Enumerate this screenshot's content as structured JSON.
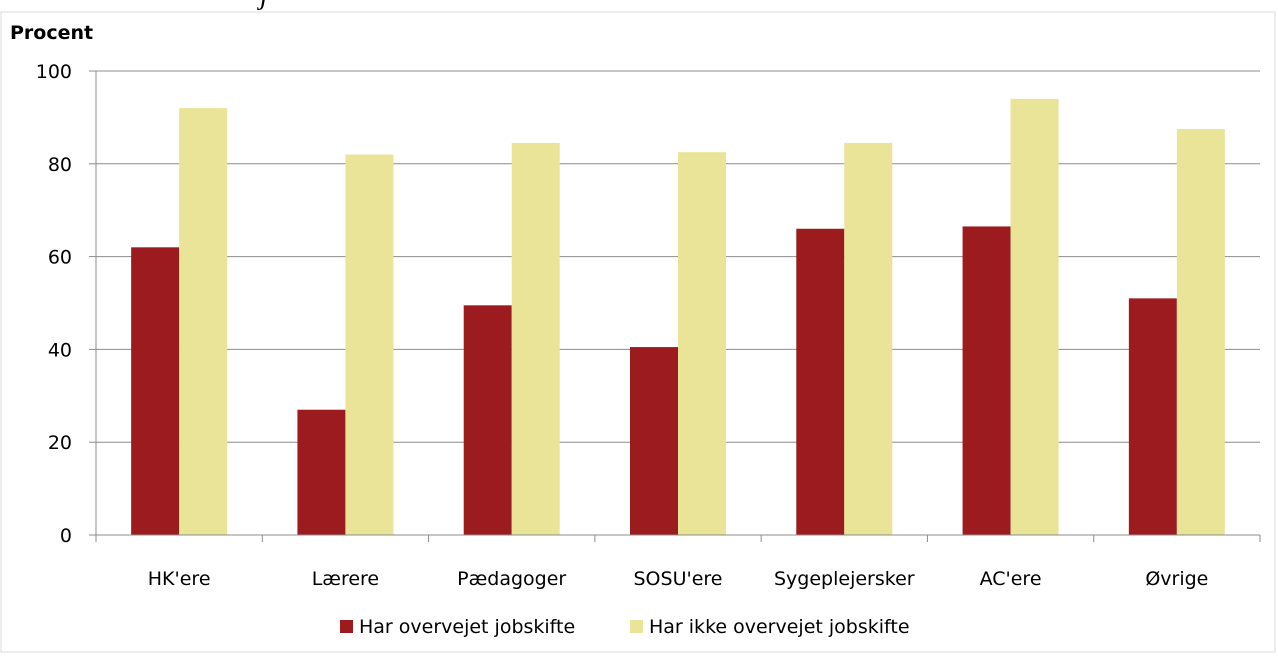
{
  "header": {
    "clipped_caption": "j"
  },
  "chart_data": {
    "type": "bar",
    "title": "",
    "ylabel": "Procent",
    "xlabel": "",
    "ylim": [
      0,
      100
    ],
    "yticks": [
      0,
      20,
      40,
      60,
      80,
      100
    ],
    "grid": true,
    "legend_position": "bottom",
    "categories": [
      "HK'ere",
      "Lærere",
      "Pædagoger",
      "SOSU'ere",
      "Sygeplejersker",
      "AC'ere",
      "Øvrige"
    ],
    "series": [
      {
        "name": "Har overvejet jobskifte",
        "color": "#9b1b1f",
        "values": [
          62,
          27,
          49.5,
          40.5,
          66,
          66.5,
          51
        ]
      },
      {
        "name": "Har ikke overvejet jobskifte",
        "color": "#e9e497",
        "values": [
          92,
          82,
          84.5,
          82.5,
          84.5,
          94,
          87.5
        ]
      }
    ]
  }
}
